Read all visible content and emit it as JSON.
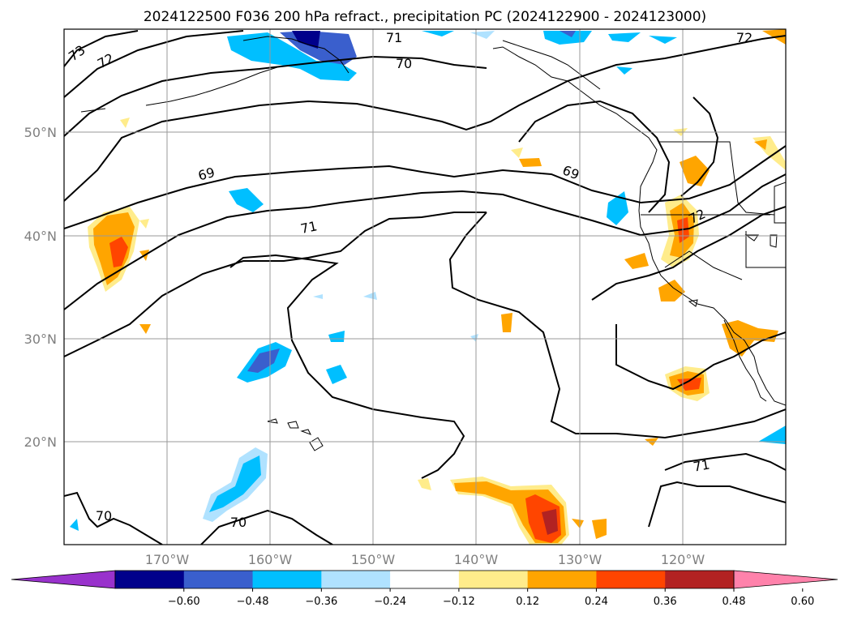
{
  "title": "2024122500 F036 200 hPa refract., precipitation PC (2024122900 - 2024123000)",
  "lat_labels": [
    "50°N",
    "40°N",
    "30°N",
    "20°N"
  ],
  "lon_labels": [
    "170°W",
    "160°W",
    "150°W",
    "140°W",
    "130°W",
    "120°W"
  ],
  "colorbar": {
    "colors": [
      "#9932cc",
      "#00008b",
      "#3a5fcd",
      "#00bfff",
      "#b0e2ff",
      "#ffffff",
      "#ffec8b",
      "#ffa500",
      "#ff4500",
      "#b22222",
      "#ff82ab"
    ],
    "tick_labels": [
      "−0.60",
      "−0.48",
      "−0.36",
      "−0.24",
      "−0.12",
      "0.12",
      "0.24",
      "0.36",
      "0.48",
      "0.60"
    ]
  },
  "contour_labels": [
    {
      "text": "73"
    },
    {
      "text": "72"
    },
    {
      "text": "71"
    },
    {
      "text": "70"
    },
    {
      "text": "72"
    },
    {
      "text": "69"
    },
    {
      "text": "69"
    },
    {
      "text": "71"
    },
    {
      "text": "72"
    },
    {
      "text": "71"
    },
    {
      "text": "70"
    },
    {
      "text": "70"
    }
  ]
}
